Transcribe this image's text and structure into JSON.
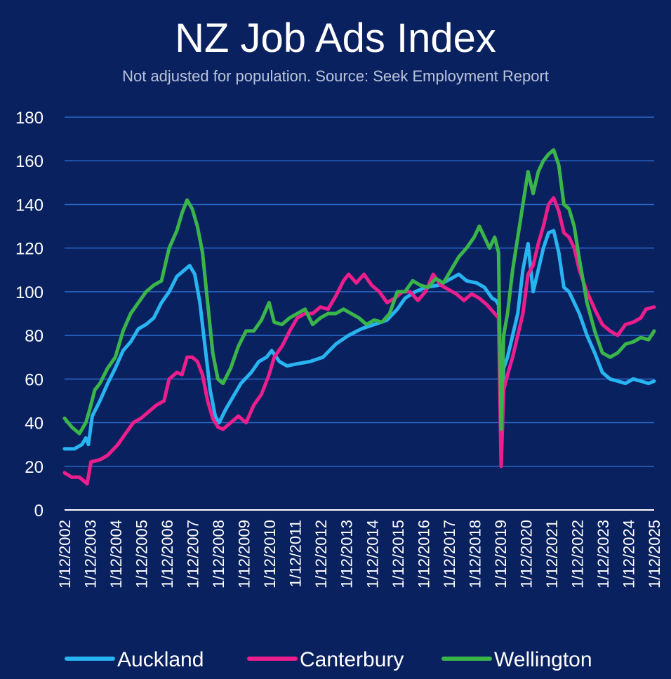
{
  "chart_data": {
    "type": "line",
    "title": "NZ Job Ads Index",
    "subtitle": "Not adjusted for population. Source: Seek Employment Report",
    "xlabel": "",
    "ylabel": "",
    "ylim": [
      0,
      180
    ],
    "yticks": [
      0,
      20,
      40,
      60,
      80,
      100,
      120,
      140,
      160,
      180
    ],
    "xlim": [
      2002.92,
      2025.92
    ],
    "xtick_labels": [
      "1/12/2002",
      "1/12/2003",
      "1/12/2004",
      "1/12/2005",
      "1/12/2006",
      "1/12/2007",
      "1/12/2008",
      "1/12/2009",
      "1/12/2010",
      "1/12/2011",
      "1/12/2012",
      "1/12/2013",
      "1/12/2014",
      "1/12/2015",
      "1/12/2016",
      "1/12/2017",
      "1/12/2018",
      "1/12/2019",
      "1/12/2020",
      "1/12/2021",
      "1/12/2022",
      "1/12/2023",
      "1/12/2024",
      "1/12/2025"
    ],
    "xtick_values": [
      2002.92,
      2003.92,
      2004.92,
      2005.92,
      2006.92,
      2007.92,
      2008.92,
      2009.92,
      2010.92,
      2011.92,
      2012.92,
      2013.92,
      2014.92,
      2015.92,
      2016.92,
      2017.92,
      2018.92,
      2019.92,
      2020.92,
      2021.92,
      2022.92,
      2023.92,
      2024.92,
      2025.92
    ],
    "grid": "horizontal",
    "legend": "bottom",
    "series": [
      {
        "name": "Auckland",
        "color": "#27b4f0",
        "points": [
          [
            2002.92,
            28
          ],
          [
            2003.3,
            28
          ],
          [
            2003.6,
            30
          ],
          [
            2003.75,
            33
          ],
          [
            2003.85,
            30
          ],
          [
            2004.0,
            43
          ],
          [
            2004.3,
            50
          ],
          [
            2004.6,
            58
          ],
          [
            2004.9,
            65
          ],
          [
            2005.2,
            73
          ],
          [
            2005.5,
            77
          ],
          [
            2005.8,
            83
          ],
          [
            2006.1,
            85
          ],
          [
            2006.4,
            88
          ],
          [
            2006.7,
            95
          ],
          [
            2007.0,
            100
          ],
          [
            2007.3,
            107
          ],
          [
            2007.6,
            110
          ],
          [
            2007.8,
            112
          ],
          [
            2008.0,
            108
          ],
          [
            2008.2,
            95
          ],
          [
            2008.4,
            75
          ],
          [
            2008.6,
            55
          ],
          [
            2008.8,
            43
          ],
          [
            2008.95,
            40
          ],
          [
            2009.2,
            46
          ],
          [
            2009.5,
            52
          ],
          [
            2009.8,
            58
          ],
          [
            2010.2,
            63
          ],
          [
            2010.5,
            68
          ],
          [
            2010.8,
            70
          ],
          [
            2011.0,
            73
          ],
          [
            2011.3,
            68
          ],
          [
            2011.6,
            66
          ],
          [
            2012.0,
            67
          ],
          [
            2012.5,
            68
          ],
          [
            2013.0,
            70
          ],
          [
            2013.5,
            76
          ],
          [
            2014.0,
            80
          ],
          [
            2014.5,
            83
          ],
          [
            2015.0,
            85
          ],
          [
            2015.5,
            87
          ],
          [
            2015.9,
            92
          ],
          [
            2016.2,
            97
          ],
          [
            2016.6,
            100
          ],
          [
            2017.0,
            102
          ],
          [
            2017.5,
            103
          ],
          [
            2018.0,
            106
          ],
          [
            2018.3,
            108
          ],
          [
            2018.6,
            105
          ],
          [
            2019.0,
            104
          ],
          [
            2019.3,
            102
          ],
          [
            2019.6,
            97
          ],
          [
            2019.75,
            96
          ],
          [
            2019.85,
            94
          ],
          [
            2019.95,
            40
          ],
          [
            2020.05,
            65
          ],
          [
            2020.2,
            70
          ],
          [
            2020.4,
            80
          ],
          [
            2020.6,
            90
          ],
          [
            2020.8,
            110
          ],
          [
            2021.0,
            122
          ],
          [
            2021.2,
            100
          ],
          [
            2021.4,
            110
          ],
          [
            2021.6,
            120
          ],
          [
            2021.8,
            127
          ],
          [
            2022.0,
            128
          ],
          [
            2022.2,
            118
          ],
          [
            2022.4,
            102
          ],
          [
            2022.6,
            100
          ],
          [
            2022.8,
            95
          ],
          [
            2023.0,
            90
          ],
          [
            2023.3,
            80
          ],
          [
            2023.6,
            72
          ],
          [
            2023.9,
            63
          ],
          [
            2024.2,
            60
          ],
          [
            2024.5,
            59
          ],
          [
            2024.8,
            58
          ],
          [
            2025.1,
            60
          ],
          [
            2025.4,
            59
          ],
          [
            2025.7,
            58
          ],
          [
            2025.92,
            59
          ]
        ]
      },
      {
        "name": "Canterbury",
        "color": "#ec1e8c",
        "points": [
          [
            2002.92,
            17
          ],
          [
            2003.2,
            15
          ],
          [
            2003.5,
            15
          ],
          [
            2003.8,
            12
          ],
          [
            2003.95,
            22
          ],
          [
            2004.3,
            23
          ],
          [
            2004.6,
            25
          ],
          [
            2005.0,
            30
          ],
          [
            2005.3,
            35
          ],
          [
            2005.6,
            40
          ],
          [
            2005.9,
            42
          ],
          [
            2006.2,
            45
          ],
          [
            2006.5,
            48
          ],
          [
            2006.8,
            50
          ],
          [
            2007.0,
            60
          ],
          [
            2007.3,
            63
          ],
          [
            2007.5,
            62
          ],
          [
            2007.7,
            70
          ],
          [
            2007.9,
            70
          ],
          [
            2008.1,
            68
          ],
          [
            2008.3,
            62
          ],
          [
            2008.5,
            50
          ],
          [
            2008.7,
            42
          ],
          [
            2008.9,
            38
          ],
          [
            2009.1,
            37
          ],
          [
            2009.4,
            40
          ],
          [
            2009.7,
            43
          ],
          [
            2010.0,
            40
          ],
          [
            2010.3,
            48
          ],
          [
            2010.6,
            53
          ],
          [
            2010.9,
            62
          ],
          [
            2011.1,
            70
          ],
          [
            2011.4,
            75
          ],
          [
            2011.7,
            82
          ],
          [
            2012.0,
            88
          ],
          [
            2012.3,
            90
          ],
          [
            2012.6,
            90
          ],
          [
            2012.9,
            93
          ],
          [
            2013.2,
            92
          ],
          [
            2013.5,
            98
          ],
          [
            2013.8,
            105
          ],
          [
            2014.0,
            108
          ],
          [
            2014.3,
            104
          ],
          [
            2014.6,
            108
          ],
          [
            2014.9,
            103
          ],
          [
            2015.2,
            100
          ],
          [
            2015.5,
            95
          ],
          [
            2015.8,
            97
          ],
          [
            2016.1,
            100
          ],
          [
            2016.4,
            100
          ],
          [
            2016.7,
            96
          ],
          [
            2017.0,
            100
          ],
          [
            2017.3,
            108
          ],
          [
            2017.6,
            103
          ],
          [
            2017.9,
            101
          ],
          [
            2018.2,
            99
          ],
          [
            2018.5,
            96
          ],
          [
            2018.8,
            99
          ],
          [
            2019.1,
            97
          ],
          [
            2019.4,
            94
          ],
          [
            2019.7,
            90
          ],
          [
            2019.85,
            88
          ],
          [
            2019.95,
            20
          ],
          [
            2020.05,
            55
          ],
          [
            2020.2,
            62
          ],
          [
            2020.4,
            70
          ],
          [
            2020.6,
            80
          ],
          [
            2020.8,
            90
          ],
          [
            2021.0,
            108
          ],
          [
            2021.2,
            112
          ],
          [
            2021.4,
            122
          ],
          [
            2021.6,
            130
          ],
          [
            2021.8,
            140
          ],
          [
            2022.0,
            143
          ],
          [
            2022.2,
            137
          ],
          [
            2022.4,
            127
          ],
          [
            2022.6,
            125
          ],
          [
            2022.8,
            120
          ],
          [
            2023.0,
            110
          ],
          [
            2023.3,
            100
          ],
          [
            2023.6,
            92
          ],
          [
            2023.9,
            85
          ],
          [
            2024.2,
            82
          ],
          [
            2024.5,
            80
          ],
          [
            2024.8,
            85
          ],
          [
            2025.1,
            86
          ],
          [
            2025.4,
            88
          ],
          [
            2025.6,
            92
          ],
          [
            2025.92,
            93
          ]
        ]
      },
      {
        "name": "Wellington",
        "color": "#3ab54a",
        "points": [
          [
            2002.92,
            42
          ],
          [
            2003.2,
            38
          ],
          [
            2003.5,
            35
          ],
          [
            2003.75,
            40
          ],
          [
            2003.9,
            46
          ],
          [
            2004.1,
            55
          ],
          [
            2004.3,
            58
          ],
          [
            2004.6,
            65
          ],
          [
            2004.9,
            70
          ],
          [
            2005.2,
            82
          ],
          [
            2005.5,
            90
          ],
          [
            2005.8,
            95
          ],
          [
            2006.1,
            100
          ],
          [
            2006.4,
            103
          ],
          [
            2006.7,
            105
          ],
          [
            2007.0,
            120
          ],
          [
            2007.3,
            128
          ],
          [
            2007.5,
            136
          ],
          [
            2007.7,
            142
          ],
          [
            2007.9,
            138
          ],
          [
            2008.1,
            130
          ],
          [
            2008.3,
            118
          ],
          [
            2008.5,
            95
          ],
          [
            2008.7,
            72
          ],
          [
            2008.9,
            60
          ],
          [
            2009.1,
            58
          ],
          [
            2009.4,
            65
          ],
          [
            2009.7,
            75
          ],
          [
            2010.0,
            82
          ],
          [
            2010.3,
            82
          ],
          [
            2010.6,
            87
          ],
          [
            2010.9,
            95
          ],
          [
            2011.1,
            86
          ],
          [
            2011.4,
            85
          ],
          [
            2011.7,
            88
          ],
          [
            2012.0,
            90
          ],
          [
            2012.3,
            92
          ],
          [
            2012.6,
            85
          ],
          [
            2012.9,
            88
          ],
          [
            2013.2,
            90
          ],
          [
            2013.5,
            90
          ],
          [
            2013.8,
            92
          ],
          [
            2014.1,
            90
          ],
          [
            2014.4,
            88
          ],
          [
            2014.7,
            85
          ],
          [
            2015.0,
            87
          ],
          [
            2015.3,
            86
          ],
          [
            2015.6,
            90
          ],
          [
            2015.9,
            100
          ],
          [
            2016.2,
            100
          ],
          [
            2016.5,
            105
          ],
          [
            2016.8,
            103
          ],
          [
            2017.1,
            102
          ],
          [
            2017.4,
            106
          ],
          [
            2017.7,
            104
          ],
          [
            2018.0,
            110
          ],
          [
            2018.3,
            116
          ],
          [
            2018.6,
            120
          ],
          [
            2018.9,
            125
          ],
          [
            2019.1,
            130
          ],
          [
            2019.3,
            125
          ],
          [
            2019.5,
            120
          ],
          [
            2019.7,
            125
          ],
          [
            2019.85,
            118
          ],
          [
            2019.95,
            37
          ],
          [
            2020.05,
            80
          ],
          [
            2020.2,
            90
          ],
          [
            2020.4,
            110
          ],
          [
            2020.6,
            125
          ],
          [
            2020.8,
            140
          ],
          [
            2021.0,
            155
          ],
          [
            2021.2,
            145
          ],
          [
            2021.4,
            155
          ],
          [
            2021.6,
            160
          ],
          [
            2021.8,
            163
          ],
          [
            2022.0,
            165
          ],
          [
            2022.2,
            158
          ],
          [
            2022.4,
            140
          ],
          [
            2022.6,
            138
          ],
          [
            2022.8,
            130
          ],
          [
            2023.0,
            115
          ],
          [
            2023.3,
            95
          ],
          [
            2023.6,
            82
          ],
          [
            2023.9,
            72
          ],
          [
            2024.2,
            70
          ],
          [
            2024.5,
            72
          ],
          [
            2024.8,
            76
          ],
          [
            2025.1,
            77
          ],
          [
            2025.4,
            79
          ],
          [
            2025.7,
            78
          ],
          [
            2025.92,
            82
          ]
        ]
      }
    ]
  }
}
